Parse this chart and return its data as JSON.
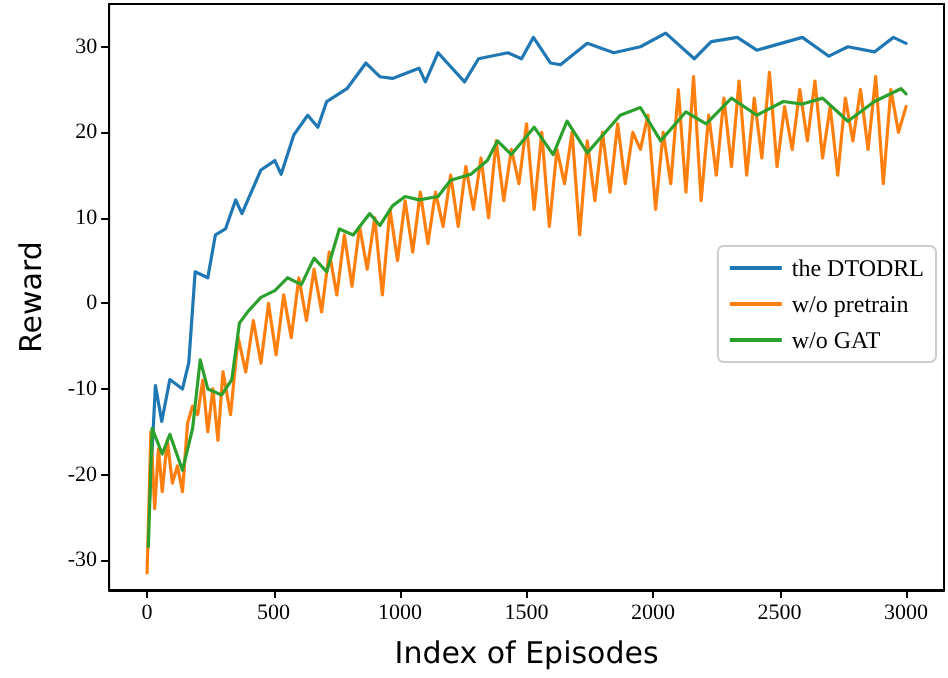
{
  "chart_data": {
    "type": "line",
    "xlabel": "Index of Episodes",
    "ylabel": "Reward",
    "xlim": [
      -150,
      3150
    ],
    "ylim": [
      -33.5,
      35
    ],
    "xticks": [
      0,
      500,
      1000,
      1500,
      2000,
      2500,
      3000
    ],
    "yticks": [
      -30,
      -20,
      -10,
      0,
      10,
      20,
      30
    ],
    "grid": false,
    "legend": "right",
    "marker": "none",
    "line_style": "solid",
    "series": [
      {
        "name": "the DTODRL",
        "color": "#1f77b4",
        "x": [
          10,
          33,
          58,
          90,
          140,
          165,
          190,
          240,
          270,
          310,
          350,
          375,
          450,
          505,
          530,
          580,
          635,
          675,
          710,
          790,
          865,
          920,
          970,
          1075,
          1100,
          1150,
          1255,
          1310,
          1426,
          1480,
          1527,
          1595,
          1634,
          1740,
          1845,
          1950,
          2050,
          2163,
          2230,
          2333,
          2410,
          2590,
          2695,
          2770,
          2875,
          2950,
          3000
        ],
        "values": [
          -22.9,
          -9.6,
          -13.8,
          -8.9,
          -10,
          -6.9,
          3.7,
          3,
          8,
          8.7,
          12.1,
          10.5,
          15.6,
          16.7,
          15.1,
          19.7,
          22,
          20.6,
          23.6,
          25.1,
          28.1,
          26.5,
          26.3,
          27.5,
          25.9,
          29.3,
          25.9,
          28.6,
          29.3,
          28.6,
          31.1,
          28.1,
          27.9,
          30.4,
          29.3,
          30,
          31.6,
          28.6,
          30.6,
          31.1,
          29.6,
          31.1,
          28.9,
          30,
          29.4,
          31.1,
          30.4
        ]
      },
      {
        "name": "w/o pretrain",
        "color": "#ff7f0e",
        "x": [
          0,
          15,
          30,
          45,
          60,
          80,
          100,
          120,
          140,
          160,
          180,
          200,
          220,
          240,
          260,
          280,
          300,
          330,
          360,
          390,
          420,
          450,
          480,
          510,
          540,
          570,
          600,
          630,
          660,
          690,
          720,
          750,
          780,
          810,
          840,
          870,
          900,
          930,
          960,
          990,
          1020,
          1050,
          1080,
          1110,
          1140,
          1170,
          1200,
          1230,
          1260,
          1290,
          1320,
          1350,
          1380,
          1410,
          1440,
          1470,
          1500,
          1530,
          1560,
          1590,
          1620,
          1650,
          1680,
          1710,
          1740,
          1770,
          1800,
          1830,
          1860,
          1890,
          1920,
          1950,
          1980,
          2010,
          2040,
          2070,
          2100,
          2130,
          2160,
          2190,
          2220,
          2250,
          2280,
          2310,
          2340,
          2370,
          2400,
          2430,
          2460,
          2490,
          2520,
          2550,
          2580,
          2610,
          2640,
          2670,
          2700,
          2730,
          2760,
          2790,
          2820,
          2850,
          2880,
          2910,
          2940,
          2970,
          3000
        ],
        "values": [
          -31.5,
          -15,
          -24,
          -17,
          -22,
          -16,
          -21,
          -19,
          -22,
          -14,
          -12,
          -13,
          -9,
          -15,
          -10,
          -16,
          -8,
          -13,
          -4,
          -8,
          -2,
          -7,
          0,
          -6,
          1,
          -4,
          3,
          -2,
          4,
          -1,
          6,
          1,
          8,
          2,
          9,
          4,
          10,
          1,
          11,
          5,
          12,
          6,
          13,
          7,
          13,
          9,
          15,
          9,
          16,
          11,
          17,
          10,
          19,
          12,
          18,
          14,
          21,
          11,
          20,
          9,
          18,
          14,
          20,
          8,
          19,
          12,
          20,
          13,
          21,
          14,
          20,
          18,
          22,
          11,
          20,
          14,
          25,
          13,
          26.5,
          12,
          22,
          15,
          24,
          16,
          26,
          15,
          24,
          17,
          27,
          16,
          23,
          18,
          25,
          19,
          26,
          17,
          23,
          15,
          24,
          19,
          25,
          18,
          26.5,
          14,
          25,
          20,
          23
        ]
      },
      {
        "name": "w/o GAT",
        "color": "#2ca02c",
        "x": [
          5,
          20,
          60,
          90,
          140,
          180,
          210,
          240,
          295,
          335,
          365,
          400,
          450,
          505,
          555,
          610,
          660,
          710,
          760,
          815,
          880,
          920,
          970,
          1020,
          1075,
          1150,
          1200,
          1280,
          1345,
          1385,
          1440,
          1530,
          1605,
          1660,
          1740,
          1870,
          1950,
          2030,
          2130,
          2210,
          2310,
          2410,
          2515,
          2590,
          2670,
          2770,
          2875,
          2980,
          3000
        ],
        "values": [
          -28.4,
          -14.6,
          -17.6,
          -15.3,
          -19.5,
          -14.6,
          -6.6,
          -10,
          -10.7,
          -8.9,
          -2.3,
          -0.9,
          0.7,
          1.5,
          3,
          2.2,
          5.3,
          3.7,
          8.7,
          8,
          10.5,
          9.1,
          11.4,
          12.5,
          12.1,
          12.5,
          14.4,
          15.1,
          16.7,
          19,
          17.4,
          20.6,
          17.4,
          21.3,
          17.6,
          22,
          22.9,
          19,
          22.4,
          21,
          24,
          22,
          23.6,
          23.3,
          24,
          21.3,
          23.6,
          25.1,
          24.5
        ]
      }
    ]
  }
}
